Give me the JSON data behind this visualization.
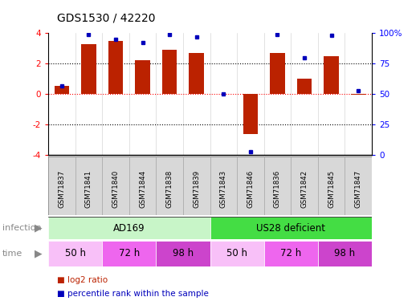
{
  "title": "GDS1530 / 42220",
  "samples": [
    "GSM71837",
    "GSM71841",
    "GSM71840",
    "GSM71844",
    "GSM71838",
    "GSM71839",
    "GSM71843",
    "GSM71846",
    "GSM71836",
    "GSM71842",
    "GSM71845",
    "GSM71847"
  ],
  "log2_ratio": [
    0.55,
    3.3,
    3.5,
    2.2,
    2.9,
    2.7,
    0.0,
    -2.6,
    2.7,
    1.0,
    2.5,
    -0.05
  ],
  "percentile_rank": [
    57,
    99,
    95,
    92,
    99,
    97,
    50,
    3,
    99,
    80,
    98,
    53
  ],
  "infection_groups": [
    {
      "label": "AD169",
      "start": 0,
      "end": 6,
      "color": "#c8f5c8"
    },
    {
      "label": "US28 deficient",
      "start": 6,
      "end": 12,
      "color": "#44dd44"
    }
  ],
  "time_groups": [
    {
      "label": "50 h",
      "start": 0,
      "end": 2,
      "color": "#f8c0f8"
    },
    {
      "label": "72 h",
      "start": 2,
      "end": 4,
      "color": "#ee66ee"
    },
    {
      "label": "98 h",
      "start": 4,
      "end": 6,
      "color": "#cc44cc"
    },
    {
      "label": "50 h",
      "start": 6,
      "end": 8,
      "color": "#f8c0f8"
    },
    {
      "label": "72 h",
      "start": 8,
      "end": 10,
      "color": "#ee66ee"
    },
    {
      "label": "98 h",
      "start": 10,
      "end": 12,
      "color": "#cc44cc"
    }
  ],
  "bar_color": "#bb2200",
  "dot_color": "#0000bb",
  "ylim_left": [
    -4,
    4
  ],
  "ylim_right": [
    0,
    100
  ],
  "yticks_left": [
    -4,
    -2,
    0,
    2,
    4
  ],
  "yticks_right": [
    0,
    25,
    50,
    75,
    100
  ],
  "ytick_labels_right": [
    "0",
    "25",
    "50",
    "75",
    "100%"
  ],
  "background_color": "#ffffff",
  "sample_box_color": "#d8d8d8",
  "sample_border_color": "#aaaaaa",
  "legend_items": [
    {
      "label": "log2 ratio",
      "color": "#bb2200"
    },
    {
      "label": "percentile rank within the sample",
      "color": "#0000bb"
    }
  ],
  "left_label_color": "#888888",
  "arrow_color": "#888888"
}
